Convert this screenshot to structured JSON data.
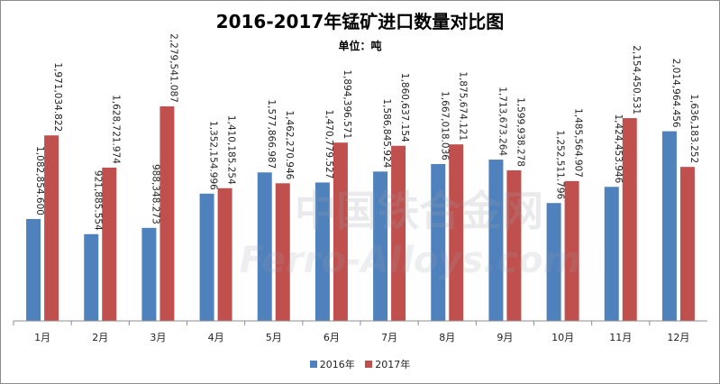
{
  "chart_data": {
    "type": "bar",
    "title": "2016-2017年锰矿进口数量对比图",
    "subtitle": "单位：吨",
    "categories": [
      "1月",
      "2月",
      "3月",
      "4月",
      "5月",
      "6月",
      "7月",
      "8月",
      "9月",
      "10月",
      "11月",
      "12月"
    ],
    "series": [
      {
        "name": "2016年",
        "color": "#4f81bd",
        "values": [
          1082854.6,
          921885.554,
          988348.273,
          1352154.996,
          1577866.987,
          1470779.527,
          1586845.924,
          1667018.036,
          1713673.264,
          1252511.796,
          1424453.946,
          2014964.456
        ],
        "labels": [
          "1,082,854.600",
          "921,885.554",
          "988,348.273",
          "1,352,154.996",
          "1,577,866.987",
          "1,470,779.527",
          "1,586,845.924",
          "1,667,018.036",
          "1,713,673.264",
          "1,252,511.796",
          "1,424,453.946",
          "2,014,964.456"
        ]
      },
      {
        "name": "2017年",
        "color": "#c0504d",
        "values": [
          1971034.822,
          1628721.974,
          2279541.087,
          1410185.254,
          1462270.946,
          1894396.571,
          1860637.154,
          1875674.121,
          1599938.278,
          1485564.907,
          2154450.531,
          1636183.252
        ],
        "labels": [
          "1,971,034.822",
          "1,628,721.974",
          "2,279,541.087",
          "1,410,185.254",
          "1,462,270.946",
          "1,894,396.571",
          "1,860,637.154",
          "1,875,674.121",
          "1,599,938.278",
          "1,485,564.907",
          "2,154,450.531",
          "1,636,183.252"
        ]
      }
    ],
    "ylim": [
      0,
      2500000
    ],
    "grid": false,
    "legend": "bottom"
  },
  "watermark": {
    "line1": "中国铁合金网",
    "line2": "Ferro-Alloys.com"
  }
}
